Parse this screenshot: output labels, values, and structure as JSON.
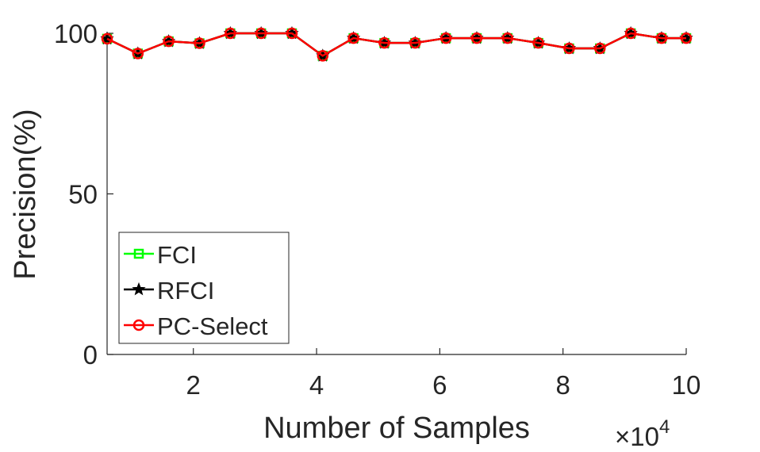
{
  "chart_data": {
    "type": "line",
    "xlabel": "Number of Samples",
    "ylabel": "Precision(%)",
    "x_multiplier": "×10",
    "x_multiplier_exp": "4",
    "xlim": [
      0.6,
      10
    ],
    "ylim": [
      0,
      100
    ],
    "xticks": [
      2,
      4,
      6,
      8,
      10
    ],
    "yticks": [
      0,
      50,
      100
    ],
    "grid": false,
    "legend_position": "bottom-left",
    "x": [
      0.6,
      1.1,
      1.6,
      2.1,
      2.6,
      3.1,
      3.6,
      4.1,
      4.6,
      5.1,
      5.6,
      6.1,
      6.6,
      7.1,
      7.6,
      8.1,
      8.6,
      9.1,
      9.6,
      10.0
    ],
    "series": [
      {
        "name": "FCI",
        "color": "#00ff00",
        "marker": "square",
        "values": [
          98.3,
          93.7,
          97.5,
          96.9,
          100,
          100,
          100,
          93.0,
          98.5,
          97.0,
          97.0,
          98.5,
          98.5,
          98.5,
          97.0,
          95.3,
          95.3,
          100,
          98.5,
          98.5
        ]
      },
      {
        "name": "RFCI",
        "color": "#000000",
        "marker": "star",
        "values": [
          98.3,
          93.7,
          97.5,
          96.9,
          100,
          100,
          100,
          93.0,
          98.5,
          97.0,
          97.0,
          98.5,
          98.5,
          98.5,
          97.0,
          95.3,
          95.3,
          100,
          98.5,
          98.5
        ]
      },
      {
        "name": "PC-Select",
        "color": "#ff0000",
        "marker": "circle",
        "values": [
          98.3,
          93.7,
          97.5,
          96.9,
          100,
          100,
          100,
          93.0,
          98.5,
          97.0,
          97.0,
          98.5,
          98.5,
          98.5,
          97.0,
          95.3,
          95.3,
          100,
          98.5,
          98.5
        ]
      }
    ]
  }
}
